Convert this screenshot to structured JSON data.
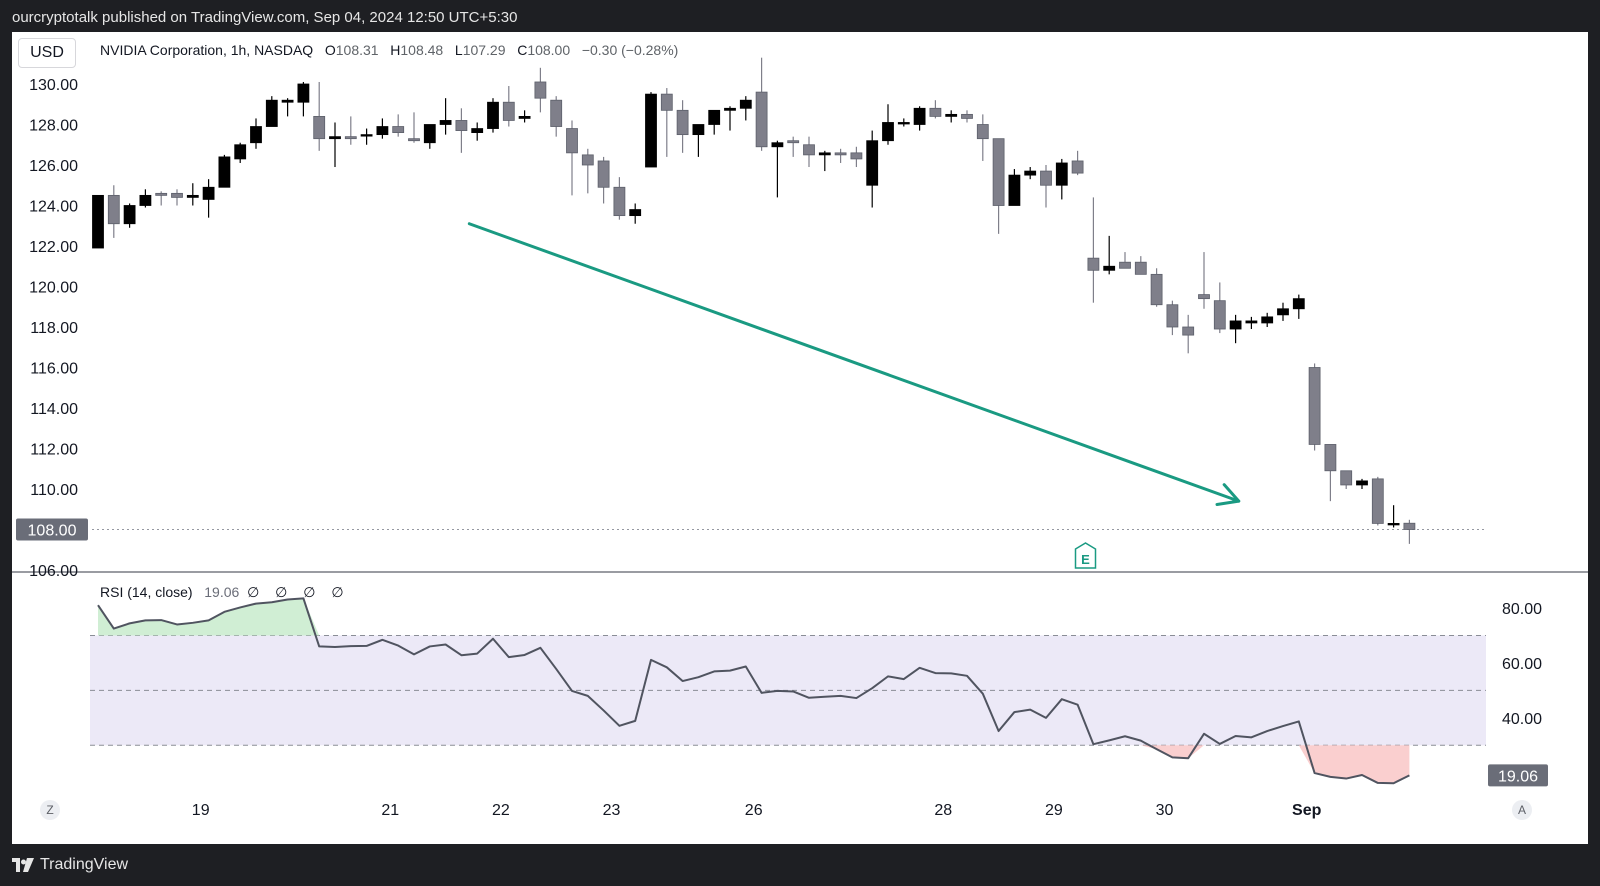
{
  "header": {
    "published_text": "ourcryptotalk published on TradingView.com, Sep 04, 2024 12:50 UTC+5:30"
  },
  "toolbar": {
    "currency": "USD"
  },
  "legend": {
    "symbol": "NVIDIA Corporation, 1h, NASDAQ",
    "o_label": "O",
    "o_value": "108.31",
    "h_label": "H",
    "h_value": "108.48",
    "l_label": "L",
    "l_value": "107.29",
    "c_label": "C",
    "c_value": "108.00",
    "change": "−0.30 (−0.28%)"
  },
  "rsi_legend": {
    "name": "RSI (14, close)",
    "value": "19.06",
    "placeholders": "∅ ∅ ∅ ∅"
  },
  "footer": {
    "brand": "TradingView"
  },
  "buttons": {
    "z_label": "Z",
    "a_label": "A"
  },
  "colors": {
    "up_candle": "#000000",
    "down_candle": "#7f7f8a",
    "arrow": "#1a9a82",
    "rsi_line": "#505460",
    "rsi_band": "#ece9f7",
    "overbought_fill": "#c8ebcc",
    "oversold_fill": "#f9caca",
    "earnings": "#1a9a82"
  },
  "chart_data": [
    {
      "type": "candlestick",
      "ylim": [
        106,
        131
      ],
      "y_ticks": [
        "130.00",
        "128.00",
        "126.00",
        "124.00",
        "122.00",
        "120.00",
        "118.00",
        "116.00",
        "114.00",
        "112.00",
        "110.00",
        "108.00",
        "106.00"
      ],
      "x_ticks": [
        "19",
        "21",
        "22",
        "23",
        "26",
        "28",
        "29",
        "30",
        "Sep"
      ],
      "x_tick_index": [
        6.5,
        18.5,
        25.5,
        32.5,
        41.5,
        53.5,
        60.5,
        67.5,
        76.5
      ],
      "last_price_label": "108.00",
      "last_price": 108.0,
      "earnings_marker": "E",
      "earnings_index": 62.5,
      "arrow": {
        "from": {
          "index": 23.5,
          "price": 123.1
        },
        "to": {
          "index": 72.2,
          "price": 109.4
        }
      },
      "candles": [
        {
          "o": 121.9,
          "h": 124.5,
          "l": 121.9,
          "c": 124.5
        },
        {
          "o": 124.5,
          "h": 125.0,
          "l": 122.4,
          "c": 123.1
        },
        {
          "o": 123.1,
          "h": 124.1,
          "l": 122.9,
          "c": 124.0
        },
        {
          "o": 124.0,
          "h": 124.8,
          "l": 123.9,
          "c": 124.5
        },
        {
          "o": 124.6,
          "h": 124.7,
          "l": 124.0,
          "c": 124.5
        },
        {
          "o": 124.6,
          "h": 124.8,
          "l": 124.0,
          "c": 124.4
        },
        {
          "o": 124.4,
          "h": 125.1,
          "l": 124.0,
          "c": 124.5
        },
        {
          "o": 124.3,
          "h": 125.3,
          "l": 123.4,
          "c": 124.9
        },
        {
          "o": 124.9,
          "h": 126.5,
          "l": 124.9,
          "c": 126.4
        },
        {
          "o": 126.3,
          "h": 127.1,
          "l": 126.1,
          "c": 127.0
        },
        {
          "o": 127.1,
          "h": 128.3,
          "l": 126.8,
          "c": 127.9
        },
        {
          "o": 127.9,
          "h": 129.4,
          "l": 127.9,
          "c": 129.2
        },
        {
          "o": 129.1,
          "h": 129.3,
          "l": 128.4,
          "c": 129.2
        },
        {
          "o": 129.1,
          "h": 130.1,
          "l": 128.4,
          "c": 130.0
        },
        {
          "o": 128.4,
          "h": 130.1,
          "l": 126.7,
          "c": 127.3
        },
        {
          "o": 127.3,
          "h": 128.1,
          "l": 125.9,
          "c": 127.4
        },
        {
          "o": 127.4,
          "h": 128.4,
          "l": 127.0,
          "c": 127.3
        },
        {
          "o": 127.5,
          "h": 127.8,
          "l": 127.0,
          "c": 127.5
        },
        {
          "o": 127.5,
          "h": 128.3,
          "l": 127.3,
          "c": 127.9
        },
        {
          "o": 127.9,
          "h": 128.5,
          "l": 127.4,
          "c": 127.6
        },
        {
          "o": 127.3,
          "h": 128.6,
          "l": 127.1,
          "c": 127.2
        },
        {
          "o": 127.1,
          "h": 128.0,
          "l": 126.8,
          "c": 128.0
        },
        {
          "o": 128.0,
          "h": 129.3,
          "l": 127.5,
          "c": 128.2
        },
        {
          "o": 128.2,
          "h": 128.8,
          "l": 126.6,
          "c": 127.7
        },
        {
          "o": 127.6,
          "h": 128.1,
          "l": 127.2,
          "c": 127.8
        },
        {
          "o": 127.8,
          "h": 129.3,
          "l": 127.6,
          "c": 129.1
        },
        {
          "o": 129.1,
          "h": 129.9,
          "l": 127.9,
          "c": 128.2
        },
        {
          "o": 128.3,
          "h": 128.7,
          "l": 128.1,
          "c": 128.4
        },
        {
          "o": 130.1,
          "h": 130.8,
          "l": 128.6,
          "c": 129.3
        },
        {
          "o": 129.2,
          "h": 129.4,
          "l": 127.4,
          "c": 127.9
        },
        {
          "o": 127.8,
          "h": 128.2,
          "l": 124.5,
          "c": 126.6
        },
        {
          "o": 126.5,
          "h": 126.8,
          "l": 124.6,
          "c": 126.0
        },
        {
          "o": 126.2,
          "h": 126.4,
          "l": 124.1,
          "c": 124.9
        },
        {
          "o": 124.9,
          "h": 125.4,
          "l": 123.3,
          "c": 123.5
        },
        {
          "o": 123.5,
          "h": 124.1,
          "l": 123.1,
          "c": 123.8
        },
        {
          "o": 125.9,
          "h": 129.6,
          "l": 125.9,
          "c": 129.5
        },
        {
          "o": 129.5,
          "h": 129.8,
          "l": 126.4,
          "c": 128.7
        },
        {
          "o": 128.7,
          "h": 129.2,
          "l": 126.6,
          "c": 127.5
        },
        {
          "o": 127.5,
          "h": 128.0,
          "l": 126.4,
          "c": 128.0
        },
        {
          "o": 128.0,
          "h": 128.6,
          "l": 127.5,
          "c": 128.7
        },
        {
          "o": 128.7,
          "h": 128.9,
          "l": 127.7,
          "c": 128.8
        },
        {
          "o": 128.8,
          "h": 129.4,
          "l": 128.2,
          "c": 129.2
        },
        {
          "o": 129.6,
          "h": 131.3,
          "l": 126.7,
          "c": 126.9
        },
        {
          "o": 126.9,
          "h": 127.2,
          "l": 124.4,
          "c": 127.1
        },
        {
          "o": 127.2,
          "h": 127.4,
          "l": 126.4,
          "c": 127.1
        },
        {
          "o": 127.0,
          "h": 127.4,
          "l": 125.9,
          "c": 126.5
        },
        {
          "o": 126.5,
          "h": 126.7,
          "l": 125.7,
          "c": 126.6
        },
        {
          "o": 126.6,
          "h": 126.8,
          "l": 126.1,
          "c": 126.5
        },
        {
          "o": 126.6,
          "h": 126.9,
          "l": 125.9,
          "c": 126.3
        },
        {
          "o": 125.0,
          "h": 127.7,
          "l": 123.9,
          "c": 127.2
        },
        {
          "o": 127.2,
          "h": 129.0,
          "l": 127.0,
          "c": 128.1
        },
        {
          "o": 128.1,
          "h": 128.3,
          "l": 127.9,
          "c": 128.1
        },
        {
          "o": 128.0,
          "h": 128.9,
          "l": 127.7,
          "c": 128.8
        },
        {
          "o": 128.8,
          "h": 129.2,
          "l": 128.3,
          "c": 128.4
        },
        {
          "o": 128.4,
          "h": 128.7,
          "l": 128.1,
          "c": 128.5
        },
        {
          "o": 128.5,
          "h": 128.7,
          "l": 128.1,
          "c": 128.3
        },
        {
          "o": 128.0,
          "h": 128.5,
          "l": 126.2,
          "c": 127.3
        },
        {
          "o": 127.3,
          "h": 127.3,
          "l": 122.6,
          "c": 124.0
        },
        {
          "o": 124.0,
          "h": 125.8,
          "l": 124.0,
          "c": 125.5
        },
        {
          "o": 125.5,
          "h": 125.9,
          "l": 125.3,
          "c": 125.7
        },
        {
          "o": 125.7,
          "h": 126.0,
          "l": 123.9,
          "c": 125.0
        },
        {
          "o": 125.0,
          "h": 126.3,
          "l": 124.3,
          "c": 126.1
        },
        {
          "o": 126.2,
          "h": 126.7,
          "l": 125.5,
          "c": 125.6
        },
        {
          "o": 121.4,
          "h": 124.4,
          "l": 119.2,
          "c": 120.8
        },
        {
          "o": 120.8,
          "h": 122.5,
          "l": 120.6,
          "c": 121.0
        },
        {
          "o": 121.2,
          "h": 121.7,
          "l": 120.9,
          "c": 120.9
        },
        {
          "o": 121.2,
          "h": 121.5,
          "l": 120.6,
          "c": 120.6
        },
        {
          "o": 120.6,
          "h": 120.9,
          "l": 119.0,
          "c": 119.1
        },
        {
          "o": 119.1,
          "h": 119.3,
          "l": 117.6,
          "c": 118.0
        },
        {
          "o": 118.0,
          "h": 118.6,
          "l": 116.7,
          "c": 117.6
        },
        {
          "o": 119.6,
          "h": 121.7,
          "l": 118.9,
          "c": 119.4
        },
        {
          "o": 119.3,
          "h": 120.2,
          "l": 117.7,
          "c": 117.9
        },
        {
          "o": 117.9,
          "h": 118.6,
          "l": 117.2,
          "c": 118.3
        },
        {
          "o": 118.2,
          "h": 118.5,
          "l": 117.9,
          "c": 118.3
        },
        {
          "o": 118.2,
          "h": 118.7,
          "l": 118.0,
          "c": 118.5
        },
        {
          "o": 118.6,
          "h": 119.2,
          "l": 118.3,
          "c": 118.9
        },
        {
          "o": 118.9,
          "h": 119.6,
          "l": 118.4,
          "c": 119.4
        },
        {
          "o": 116.0,
          "h": 116.2,
          "l": 111.9,
          "c": 112.2
        },
        {
          "o": 112.2,
          "h": 112.2,
          "l": 109.4,
          "c": 110.9
        },
        {
          "o": 110.9,
          "h": 110.9,
          "l": 110.0,
          "c": 110.2
        },
        {
          "o": 110.2,
          "h": 110.5,
          "l": 110.0,
          "c": 110.4
        },
        {
          "o": 110.5,
          "h": 110.6,
          "l": 108.2,
          "c": 108.3
        },
        {
          "o": 108.3,
          "h": 109.2,
          "l": 108.1,
          "c": 108.3
        },
        {
          "o": 108.31,
          "h": 108.48,
          "l": 107.29,
          "c": 108.0
        }
      ]
    },
    {
      "type": "line",
      "name": "RSI (14, close)",
      "ylim": [
        13,
        84
      ],
      "y_ticks": [
        "80.00",
        "60.00",
        "40.00"
      ],
      "bands": [
        70,
        50,
        30
      ],
      "last_value_label": "19.06",
      "values": [
        81,
        72.5,
        74.4,
        75.5,
        75.6,
        74,
        74.6,
        75.5,
        78.6,
        80.2,
        81.6,
        82.1,
        83.1,
        83.5,
        66,
        65.8,
        66.1,
        66.2,
        68.4,
        66.3,
        63.1,
        66,
        66.7,
        62.8,
        63.4,
        68.8,
        62.1,
        62.9,
        65.5,
        57.8,
        49.8,
        48,
        42.7,
        37.1,
        38.9,
        61.1,
        58.4,
        53.4,
        54.8,
        56.9,
        57.2,
        58.7,
        49.1,
        49.8,
        49.6,
        47.3,
        47.7,
        48,
        47.2,
        50.8,
        55.1,
        54.1,
        58.2,
        56.3,
        56.2,
        55.3,
        48.8,
        35.2,
        42.1,
        43,
        40,
        46.8,
        44.8,
        30.4,
        31.8,
        33.3,
        31.7,
        28.6,
        25.6,
        25.3,
        34.2,
        30.5,
        33.4,
        32.9,
        35.2,
        37,
        38.7,
        19.9,
        18.5,
        17.9,
        19.2,
        16.3,
        16.2,
        19.06
      ]
    }
  ]
}
